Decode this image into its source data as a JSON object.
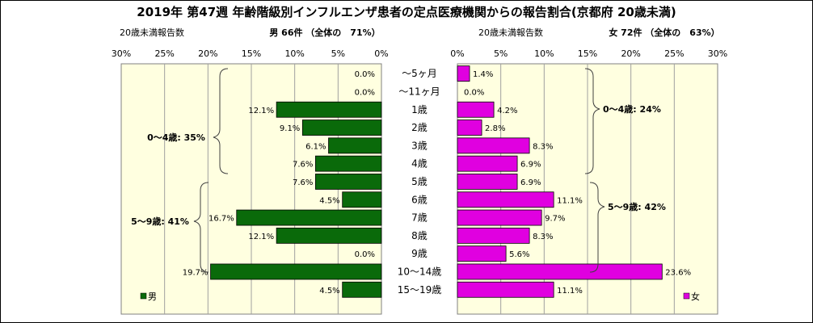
{
  "title": "2019年 第47週 年齢階級別インフルエンザ患者の定点医療機関からの報告割合(京都府 20歳未満)",
  "subtitle_left": "20歳未満報告数",
  "subtitle_right": "20歳未満報告数",
  "male_header": "男 66件 （全体の　71%）",
  "female_header": "女 72件 （全体の　63%）",
  "colors": {
    "male": "#0A6A0A",
    "female": "#E000E0",
    "plot_bg": "#FFFFE0"
  },
  "chart_data": {
    "type": "bar",
    "orientation": "horizontal-butterfly",
    "categories": [
      "～5ヶ月",
      "～11ヶ月",
      "1歳",
      "2歳",
      "3歳",
      "4歳",
      "5歳",
      "6歳",
      "7歳",
      "8歳",
      "9歳",
      "10～14歳",
      "15～19歳"
    ],
    "series": [
      {
        "name": "男",
        "values": [
          0.0,
          0.0,
          12.1,
          9.1,
          6.1,
          7.6,
          7.6,
          4.5,
          16.7,
          12.1,
          0.0,
          19.7,
          4.5
        ]
      },
      {
        "name": "女",
        "values": [
          1.4,
          0.0,
          4.2,
          2.8,
          8.3,
          6.9,
          6.9,
          11.1,
          9.7,
          8.3,
          5.6,
          23.6,
          11.1
        ]
      }
    ],
    "ticks": [
      "30%",
      "25%",
      "20%",
      "15%",
      "10%",
      "5%",
      "0%"
    ],
    "ticks_right": [
      "0%",
      "5%",
      "10%",
      "15%",
      "20%",
      "25%",
      "30%"
    ],
    "xlim": [
      0,
      30
    ],
    "grid": true,
    "group_labels_left": [
      "0～4歳: 35%",
      "5～9歳: 41%"
    ],
    "group_labels_right": [
      "0～4歳: 24%",
      "5～9歳: 42%"
    ],
    "legend": [
      "男",
      "女"
    ]
  }
}
